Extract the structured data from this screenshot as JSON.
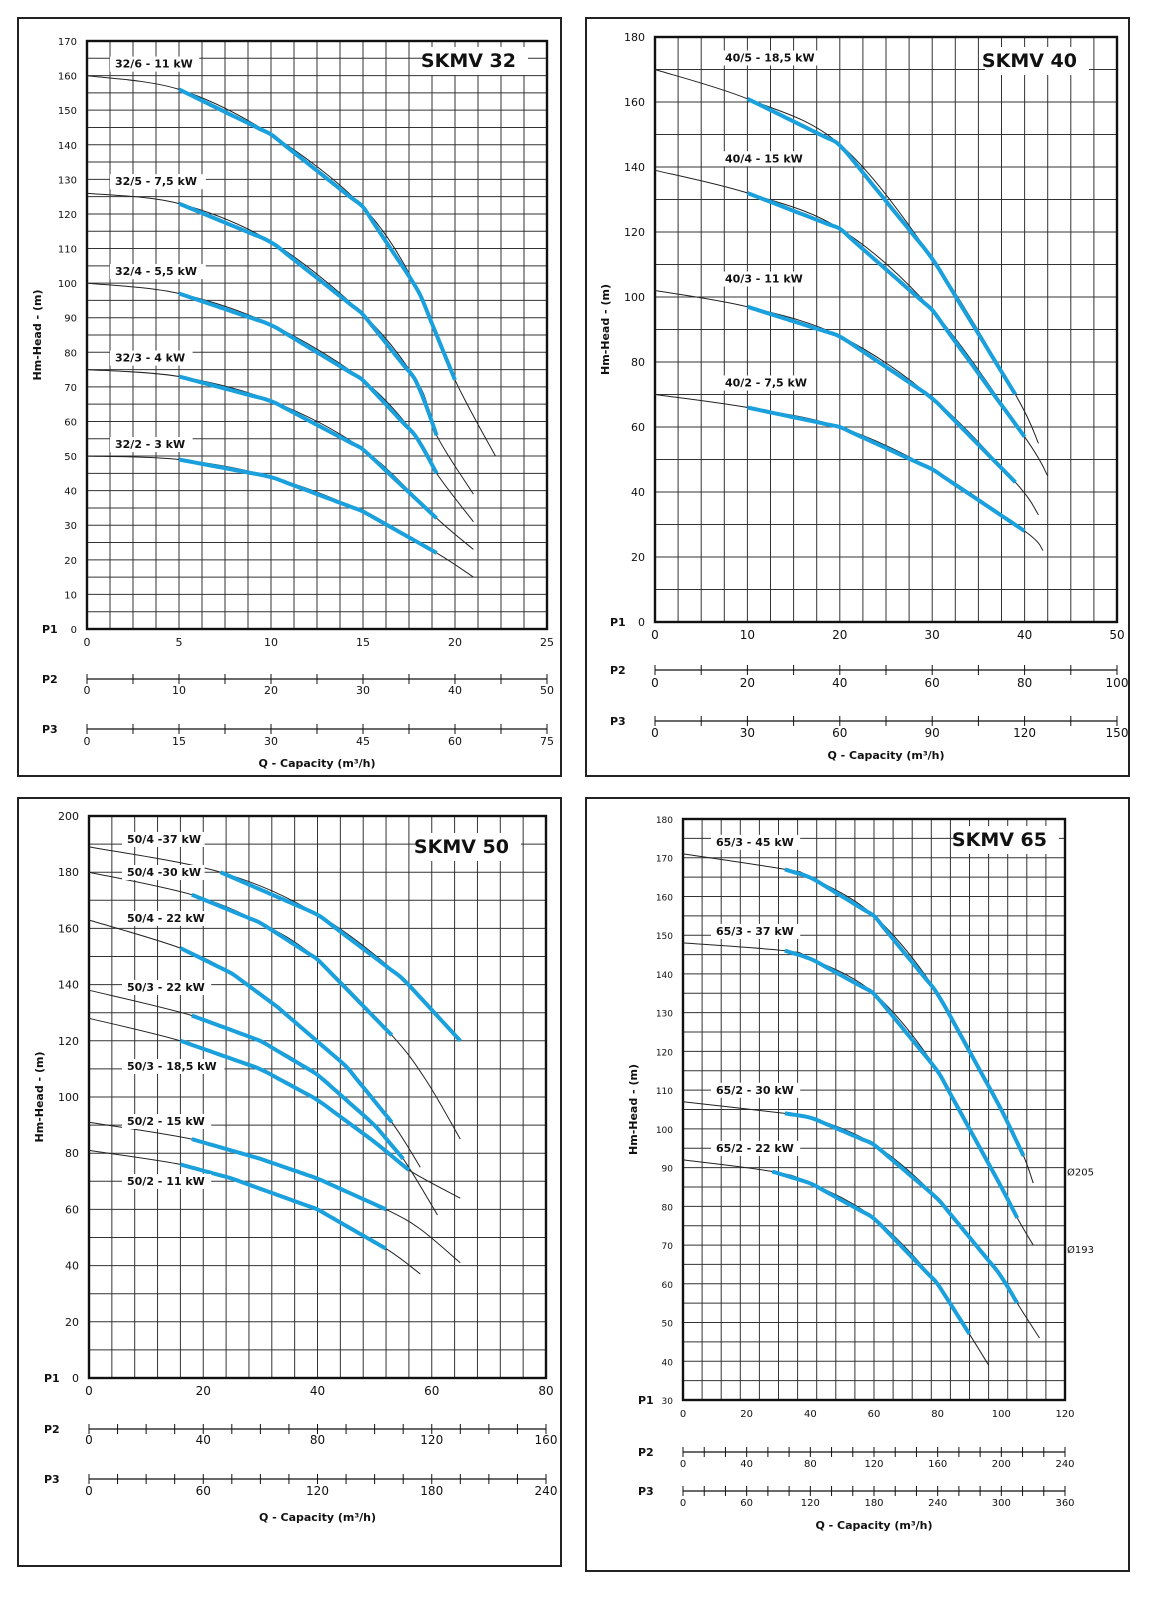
{
  "chart_data": [
    {
      "type": "line",
      "title": "SKMV 32",
      "ylabel": "Hm-Head - (m)",
      "xlabel": "Q - Capacity (m³/h)",
      "xlim": [
        0,
        25
      ],
      "ylim": [
        0,
        170
      ],
      "y_ticks": [
        0,
        10,
        20,
        30,
        40,
        50,
        60,
        70,
        80,
        90,
        100,
        110,
        120,
        130,
        140,
        150,
        160,
        170
      ],
      "scales": [
        {
          "name": "P1",
          "ticks": [
            0,
            5,
            10,
            15,
            20,
            25
          ]
        },
        {
          "name": "P2",
          "ticks": [
            0,
            10,
            20,
            30,
            40,
            50
          ]
        },
        {
          "name": "P3",
          "ticks": [
            0,
            15,
            30,
            45,
            60,
            75
          ]
        }
      ],
      "grid": true,
      "series": [
        {
          "name": "32/6 - 11 kW",
          "points": [
            [
              0,
              160
            ],
            [
              5,
              156
            ],
            [
              10,
              143
            ],
            [
              15,
              122
            ],
            [
              18,
              98
            ],
            [
              20,
              72
            ],
            [
              22.2,
              50
            ]
          ],
          "range": [
            5,
            20
          ]
        },
        {
          "name": "32/5 - 7,5 kW",
          "points": [
            [
              0,
              126
            ],
            [
              5,
              123
            ],
            [
              10,
              112
            ],
            [
              15,
              91
            ],
            [
              18,
              71
            ],
            [
              19,
              56
            ],
            [
              21,
              39
            ]
          ],
          "range": [
            5,
            19
          ]
        },
        {
          "name": "32/4 - 5,5 kW",
          "points": [
            [
              0,
              100
            ],
            [
              5,
              97
            ],
            [
              10,
              88
            ],
            [
              15,
              72
            ],
            [
              18,
              55
            ],
            [
              19,
              45
            ],
            [
              21,
              31
            ]
          ],
          "range": [
            5,
            19
          ]
        },
        {
          "name": "32/3 - 4 kW",
          "points": [
            [
              0,
              75
            ],
            [
              5,
              73
            ],
            [
              10,
              66
            ],
            [
              15,
              52
            ],
            [
              19,
              32
            ],
            [
              21,
              23
            ]
          ],
          "range": [
            5,
            19
          ]
        },
        {
          "name": "32/2 - 3 kW",
          "points": [
            [
              0,
              50
            ],
            [
              5,
              49
            ],
            [
              10,
              44
            ],
            [
              15,
              34
            ],
            [
              19,
              22
            ],
            [
              21,
              15
            ]
          ],
          "range": [
            5,
            19
          ]
        }
      ]
    },
    {
      "type": "line",
      "title": "SKMV 40",
      "ylabel": "Hm-Head - (m)",
      "xlabel": "Q - Capacity (m³/h)",
      "xlim": [
        0,
        50
      ],
      "ylim": [
        0,
        180
      ],
      "y_ticks": [
        0,
        20,
        40,
        60,
        80,
        100,
        120,
        140,
        160,
        180
      ],
      "scales": [
        {
          "name": "P1",
          "ticks": [
            0,
            10,
            20,
            30,
            40,
            50
          ]
        },
        {
          "name": "P2",
          "ticks": [
            0,
            20,
            40,
            60,
            80,
            100
          ]
        },
        {
          "name": "P3",
          "ticks": [
            0,
            30,
            60,
            90,
            120,
            150
          ]
        }
      ],
      "grid": true,
      "series": [
        {
          "name": "40/5 - 18,5 kW",
          "points": [
            [
              0,
              170
            ],
            [
              10,
              161
            ],
            [
              20,
              147
            ],
            [
              30,
              112
            ],
            [
              39,
              70
            ],
            [
              41.5,
              55
            ]
          ],
          "range": [
            10,
            39
          ]
        },
        {
          "name": "40/4 - 15 kW",
          "points": [
            [
              0,
              139
            ],
            [
              10,
              132
            ],
            [
              20,
              121
            ],
            [
              30,
              96
            ],
            [
              40,
              57
            ],
            [
              42.5,
              45
            ]
          ],
          "range": [
            10,
            40
          ]
        },
        {
          "name": "40/3 - 11 kW",
          "points": [
            [
              0,
              102
            ],
            [
              10,
              97
            ],
            [
              20,
              88
            ],
            [
              30,
              69
            ],
            [
              39,
              43
            ],
            [
              41.5,
              33
            ]
          ],
          "range": [
            10,
            39
          ]
        },
        {
          "name": "40/2 - 7,5 kW",
          "points": [
            [
              0,
              70
            ],
            [
              10,
              66
            ],
            [
              20,
              60
            ],
            [
              30,
              47
            ],
            [
              40,
              28
            ],
            [
              42,
              22
            ]
          ],
          "range": [
            10,
            40
          ]
        }
      ]
    },
    {
      "type": "line",
      "title": "SKMV 50",
      "ylabel": "Hm-Head - (m)",
      "xlabel": "Q - Capacity (m³/h)",
      "xlim": [
        0,
        80
      ],
      "ylim": [
        0,
        200
      ],
      "y_ticks": [
        0,
        20,
        40,
        60,
        80,
        100,
        120,
        140,
        160,
        180,
        200
      ],
      "scales": [
        {
          "name": "P1",
          "ticks": [
            0,
            20,
            40,
            60,
            80
          ]
        },
        {
          "name": "P2",
          "ticks": [
            0,
            40,
            80,
            120,
            160
          ]
        },
        {
          "name": "P3",
          "ticks": [
            0,
            60,
            120,
            180,
            240
          ]
        }
      ],
      "grid": true,
      "series": [
        {
          "name": "50/4 -37 kW",
          "points": [
            [
              0,
              189
            ],
            [
              23,
              180
            ],
            [
              40,
              165
            ],
            [
              55,
              142
            ],
            [
              65,
              120
            ]
          ],
          "range": [
            23,
            65
          ]
        },
        {
          "name": "50/4 -30 kW",
          "points": [
            [
              0,
              180
            ],
            [
              18,
              172
            ],
            [
              30,
              162
            ],
            [
              40,
              149
            ],
            [
              53,
              122
            ],
            [
              59,
              106
            ],
            [
              65,
              85
            ]
          ],
          "range": [
            18,
            53
          ]
        },
        {
          "name": "50/4 - 22 kW",
          "points": [
            [
              0,
              163
            ],
            [
              16,
              153
            ],
            [
              25,
              144
            ],
            [
              33,
              132
            ],
            [
              45,
              111
            ],
            [
              53,
              91
            ],
            [
              58,
              75
            ]
          ],
          "range": [
            16,
            53
          ]
        },
        {
          "name": "50/3 - 22 kW",
          "points": [
            [
              0,
              138
            ],
            [
              18,
              129
            ],
            [
              30,
              120
            ],
            [
              40,
              108
            ],
            [
              50,
              90
            ],
            [
              55,
              78
            ],
            [
              61,
              58
            ]
          ],
          "range": [
            18,
            55
          ]
        },
        {
          "name": "50/3 - 18,5 kW",
          "points": [
            [
              0,
              128
            ],
            [
              16,
              120
            ],
            [
              30,
              110
            ],
            [
              40,
              99
            ],
            [
              50,
              84
            ],
            [
              56,
              74
            ],
            [
              65,
              64
            ]
          ],
          "range": [
            16,
            56
          ]
        },
        {
          "name": "50/2 - 15 kW",
          "points": [
            [
              0,
              91
            ],
            [
              18,
              85
            ],
            [
              30,
              78
            ],
            [
              40,
              71
            ],
            [
              52,
              60
            ],
            [
              58,
              53
            ],
            [
              65,
              41
            ]
          ],
          "range": [
            18,
            52
          ]
        },
        {
          "name": "50/2 - 11 kW",
          "points": [
            [
              0,
              81
            ],
            [
              16,
              76
            ],
            [
              25,
              71
            ],
            [
              40,
              60
            ],
            [
              52,
              46
            ],
            [
              58,
              37
            ]
          ],
          "range": [
            16,
            52
          ]
        }
      ]
    },
    {
      "type": "line",
      "title": "SKMV 65",
      "ylabel": "Hm-Head - (m)",
      "xlabel": "Q - Capacity (m³/h)",
      "xlim": [
        0,
        120
      ],
      "ylim": [
        30,
        180
      ],
      "y_ticks": [
        30,
        40,
        50,
        60,
        70,
        80,
        90,
        100,
        110,
        120,
        130,
        140,
        150,
        160,
        170,
        180
      ],
      "scales": [
        {
          "name": "P1",
          "ticks": [
            0,
            20,
            40,
            60,
            80,
            100,
            120
          ]
        },
        {
          "name": "P2",
          "ticks": [
            0,
            40,
            80,
            120,
            160,
            200,
            240
          ]
        },
        {
          "name": "P3",
          "ticks": [
            0,
            60,
            120,
            180,
            240,
            300,
            360
          ]
        }
      ],
      "grid": true,
      "annotations": [
        "Ø205",
        "Ø193"
      ],
      "series": [
        {
          "name": "65/3 - 45 kW",
          "points": [
            [
              0,
              171
            ],
            [
              32,
              167
            ],
            [
              40,
              165
            ],
            [
              60,
              155
            ],
            [
              80,
              135
            ],
            [
              100,
              105
            ],
            [
              107,
              93
            ],
            [
              110,
              86
            ]
          ],
          "range": [
            32,
            107
          ]
        },
        {
          "name": "65/3 - 37 kW",
          "points": [
            [
              0,
              148
            ],
            [
              32,
              146
            ],
            [
              40,
              144
            ],
            [
              60,
              135
            ],
            [
              80,
              115
            ],
            [
              100,
              85
            ],
            [
              105,
              77
            ],
            [
              110,
              70
            ]
          ],
          "range": [
            32,
            105
          ]
        },
        {
          "name": "65/2 - 30 kW",
          "points": [
            [
              0,
              107
            ],
            [
              32,
              104
            ],
            [
              40,
              103
            ],
            [
              60,
              96
            ],
            [
              80,
              82
            ],
            [
              100,
              62
            ],
            [
              105,
              55
            ],
            [
              112,
              46
            ]
          ],
          "range": [
            32,
            105
          ]
        },
        {
          "name": "65/2 - 22 kW",
          "points": [
            [
              0,
              92
            ],
            [
              28,
              89
            ],
            [
              40,
              86
            ],
            [
              60,
              77
            ],
            [
              80,
              60
            ],
            [
              90,
              47
            ],
            [
              96,
              39
            ]
          ],
          "range": [
            28,
            90
          ]
        }
      ]
    }
  ]
}
